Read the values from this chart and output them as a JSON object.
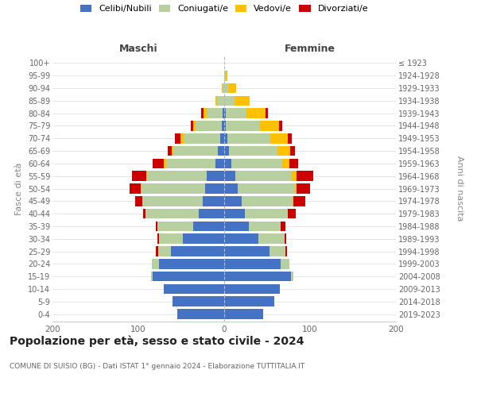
{
  "age_groups": [
    "0-4",
    "5-9",
    "10-14",
    "15-19",
    "20-24",
    "25-29",
    "30-34",
    "35-39",
    "40-44",
    "45-49",
    "50-54",
    "55-59",
    "60-64",
    "65-69",
    "70-74",
    "75-79",
    "80-84",
    "85-89",
    "90-94",
    "95-99",
    "100+"
  ],
  "birth_years": [
    "2019-2023",
    "2014-2018",
    "2009-2013",
    "2004-2008",
    "1999-2003",
    "1994-1998",
    "1989-1993",
    "1984-1988",
    "1979-1983",
    "1974-1978",
    "1969-1973",
    "1964-1968",
    "1959-1963",
    "1954-1958",
    "1949-1953",
    "1944-1948",
    "1939-1943",
    "1934-1938",
    "1929-1933",
    "1924-1928",
    "≤ 1923"
  ],
  "maschi": {
    "celibi": [
      55,
      60,
      70,
      83,
      76,
      62,
      48,
      36,
      30,
      25,
      22,
      20,
      10,
      7,
      5,
      3,
      2,
      0,
      0,
      0,
      0
    ],
    "coniugati": [
      0,
      0,
      0,
      2,
      8,
      15,
      28,
      42,
      62,
      70,
      74,
      70,
      58,
      52,
      42,
      30,
      18,
      8,
      2,
      0,
      0
    ],
    "vedovi": [
      0,
      0,
      0,
      0,
      0,
      0,
      0,
      0,
      0,
      0,
      1,
      1,
      2,
      2,
      4,
      3,
      4,
      2,
      1,
      0,
      0
    ],
    "divorziati": [
      0,
      0,
      0,
      0,
      0,
      3,
      2,
      2,
      2,
      9,
      13,
      16,
      13,
      5,
      6,
      3,
      3,
      0,
      0,
      0,
      0
    ]
  },
  "femmine": {
    "nubili": [
      45,
      58,
      65,
      78,
      66,
      53,
      40,
      29,
      24,
      20,
      16,
      13,
      8,
      6,
      4,
      2,
      2,
      0,
      0,
      0,
      0
    ],
    "coniugate": [
      0,
      0,
      0,
      3,
      10,
      18,
      30,
      37,
      50,
      60,
      66,
      66,
      60,
      56,
      50,
      40,
      24,
      12,
      5,
      2,
      0
    ],
    "vedove": [
      0,
      0,
      0,
      0,
      0,
      0,
      0,
      0,
      0,
      1,
      2,
      5,
      8,
      15,
      20,
      22,
      22,
      18,
      9,
      2,
      0
    ],
    "divorziate": [
      0,
      0,
      0,
      0,
      0,
      2,
      2,
      5,
      9,
      13,
      16,
      20,
      10,
      5,
      5,
      4,
      3,
      0,
      0,
      0,
      0
    ]
  },
  "colors": {
    "celibi": "#4472c4",
    "coniugati": "#b8cfa0",
    "vedovi": "#ffc000",
    "divorziati": "#cc0000"
  },
  "xlim": 200,
  "title": "Popolazione per età, sesso e stato civile - 2024",
  "subtitle": "COMUNE DI SUISIO (BG) - Dati ISTAT 1° gennaio 2024 - Elaborazione TUTTITALIA.IT",
  "ylabel_left": "Fasce di età",
  "ylabel_right": "Anni di nascita",
  "xlabel_maschi": "Maschi",
  "xlabel_femmine": "Femmine",
  "legend_labels": [
    "Celibi/Nubili",
    "Coniugati/e",
    "Vedovi/e",
    "Divorziati/e"
  ],
  "background_color": "#ffffff"
}
